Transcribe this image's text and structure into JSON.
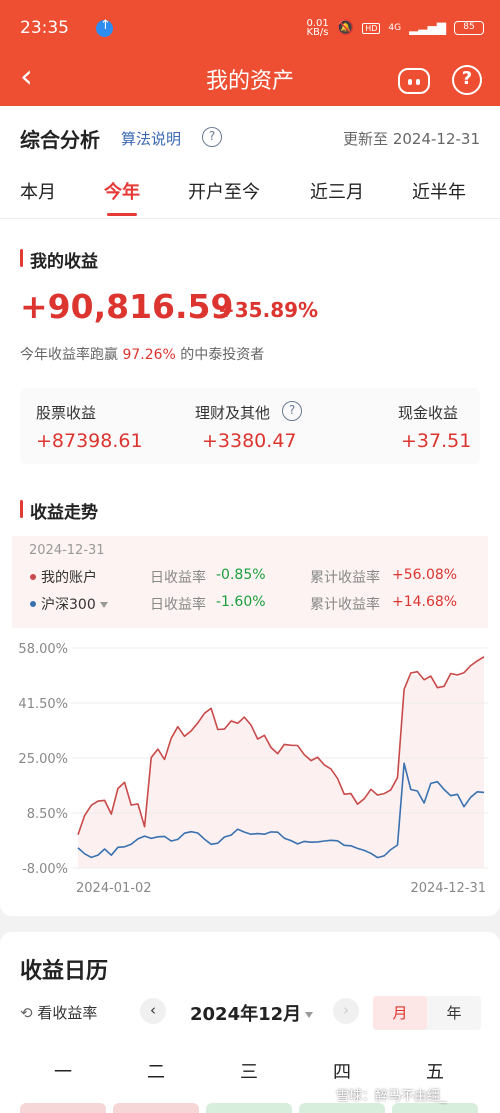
{
  "status": {
    "time": "23:35",
    "net_speed": "0.01\nKB/s",
    "hd": "HD",
    "signal": "4G",
    "battery": "85"
  },
  "nav": {
    "title": "我的资产"
  },
  "analysis": {
    "title": "综合分析",
    "algo_link": "算法说明",
    "updated": "更新至 2024-12-31"
  },
  "tabs": [
    "本月",
    "今年",
    "开户至今",
    "近三月",
    "近半年"
  ],
  "income": {
    "title": "我的收益",
    "total": "+90,816.59",
    "pct": "+35.89%",
    "beat_prefix": "今年收益率跑赢",
    "beat_value": "97.26%",
    "beat_suffix": "的中泰投资者",
    "breakdown": [
      {
        "label": "股票收益",
        "value": "+87398.61"
      },
      {
        "label": "理财及其他",
        "value": "+3380.47"
      },
      {
        "label": "现金收益",
        "value": "+37.51"
      }
    ]
  },
  "trend": {
    "title": "收益走势",
    "date": "2024-12-31",
    "rows": [
      {
        "name": "我的账户",
        "k1": "日收益率",
        "v1": "-0.85%",
        "k2": "累计收益率",
        "v2": "+56.08%",
        "color": "#c94a4a"
      },
      {
        "name": "沪深300",
        "k1": "日收益率",
        "v1": "-1.60%",
        "k2": "累计收益率",
        "v2": "+14.68%",
        "color": "#3a72b0"
      }
    ]
  },
  "chart_data": {
    "type": "line",
    "x_start": "2024-01-02",
    "x_end": "2024-12-31",
    "y_ticks": [
      "58.00%",
      "41.50%",
      "25.00%",
      "8.50%",
      "-8.00%"
    ],
    "ylim": [
      -8,
      58
    ],
    "series": [
      {
        "name": "我的账户",
        "color": "#c94a4a",
        "values": [
          2,
          7,
          10,
          12,
          13,
          9,
          16,
          17,
          10,
          11,
          5,
          26,
          28,
          24,
          30,
          34,
          32,
          34,
          36,
          38,
          39,
          33,
          34,
          37,
          36,
          37,
          34,
          30,
          32,
          29,
          27,
          29,
          28,
          28,
          26,
          25,
          26,
          23,
          21,
          18,
          14,
          15,
          12,
          13,
          15,
          13,
          14,
          16,
          20,
          46,
          50,
          50,
          48,
          50,
          47,
          47,
          50,
          49,
          50,
          53,
          55,
          56
        ]
      },
      {
        "name": "沪深300",
        "color": "#3a72b0",
        "values": [
          -2,
          -3,
          -4,
          -4,
          -3,
          -5,
          -2,
          -1,
          0,
          1,
          1,
          0,
          1,
          2,
          1,
          1,
          2,
          2,
          2,
          1,
          0,
          0,
          1,
          1,
          3,
          3,
          3,
          3,
          2,
          2,
          2,
          1,
          1,
          0,
          0,
          -1,
          -1,
          0,
          1,
          1,
          -1,
          -2,
          -3,
          -3,
          -3,
          -4,
          -4,
          -3,
          -2,
          23,
          16,
          16,
          12,
          17,
          17,
          15,
          14,
          15,
          11,
          13,
          14,
          14
        ]
      }
    ]
  },
  "calendar": {
    "title": "收益日历",
    "toggle": "看收益率",
    "prev": "‹",
    "next": "›",
    "month": "2024年12月",
    "seg_month": "月",
    "seg_year": "年",
    "weekdays": [
      "一",
      "二",
      "三",
      "四",
      "五"
    ]
  },
  "watermark": "雪球：醉马不由缰_"
}
